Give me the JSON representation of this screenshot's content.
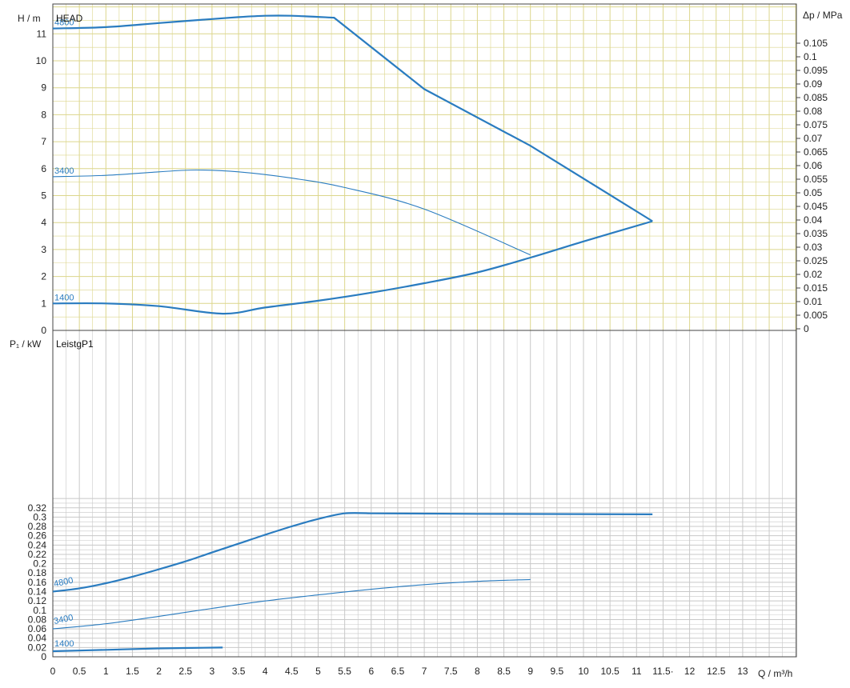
{
  "colors": {
    "curve": "#2a7cc0",
    "grid_top": "#dcd68c",
    "grid_bottom": "#c8c8c8",
    "axis": "#444444",
    "text": "#222222"
  },
  "chart_data": [
    {
      "type": "line",
      "title": "HEAD",
      "ylabel": "H / m",
      "ylabel_right": "Δp / MPa",
      "xlabel": "Q / m³/h",
      "xlim": [
        0,
        14
      ],
      "ylim": [
        0,
        11.8
      ],
      "yticks": [
        "0",
        "1",
        "2",
        "3",
        "4",
        "5",
        "6",
        "7",
        "8",
        "9",
        "10",
        "11"
      ],
      "yticks_right": [
        "0",
        "0.005",
        "0.01",
        "0.015",
        "0.02",
        "0.025",
        "0.03",
        "0.035",
        "0.04",
        "0.045",
        "0.05",
        "0.055",
        "0.06",
        "0.065",
        "0.07",
        "0.075",
        "0.08",
        "0.085",
        "0.09",
        "0.095",
        "0.1",
        "0.105"
      ],
      "grid": true,
      "series": [
        {
          "name": "4800",
          "points": [
            [
              0,
              11.2
            ],
            [
              1,
              11.25
            ],
            [
              2,
              11.4
            ],
            [
              3,
              11.55
            ],
            [
              3.5,
              11.62
            ],
            [
              4,
              11.67
            ],
            [
              4.5,
              11.67
            ],
            [
              5.3,
              11.6
            ],
            [
              7,
              8.95
            ],
            [
              9,
              6.85
            ],
            [
              11.3,
              4.05
            ]
          ]
        },
        {
          "name": "3400",
          "points": [
            [
              0,
              5.7
            ],
            [
              1,
              5.75
            ],
            [
              2,
              5.88
            ],
            [
              2.7,
              5.95
            ],
            [
              3.5,
              5.88
            ],
            [
              4.5,
              5.65
            ],
            [
              5.5,
              5.3
            ],
            [
              7,
              4.5
            ],
            [
              9,
              2.8
            ]
          ]
        },
        {
          "name": "1400",
          "points": [
            [
              0,
              1.0
            ],
            [
              1,
              1.0
            ],
            [
              2,
              0.9
            ],
            [
              3.2,
              0.62
            ],
            [
              4,
              0.85
            ],
            [
              5,
              1.1
            ],
            [
              6,
              1.4
            ],
            [
              7,
              1.75
            ],
            [
              8,
              2.15
            ],
            [
              9,
              2.7
            ],
            [
              10,
              3.3
            ],
            [
              11.3,
              4.05
            ]
          ]
        }
      ]
    },
    {
      "type": "line",
      "title": "LeistgP1",
      "ylabel": "P₁ / kW",
      "xlabel": "Q / m³/h",
      "xlim": [
        0,
        14
      ],
      "ylim": [
        0,
        0.34
      ],
      "yticks": [
        "0",
        "0.02",
        "0.04",
        "0.06",
        "0.08",
        "0.1",
        "0.12",
        "0.14",
        "0.16",
        "0.18",
        "0.2",
        "0.22",
        "0.24",
        "0.26",
        "0.28",
        "0.3",
        "0.32"
      ],
      "xticks": [
        "0",
        "0.5",
        "1",
        "1.5",
        "2",
        "2.5",
        "3",
        "3.5",
        "4",
        "4.5",
        "5",
        "5.5",
        "6",
        "6.5",
        "7",
        "7.5",
        "8",
        "8.5",
        "9",
        "9.5",
        "10",
        "10.5",
        "11",
        "11.5·",
        "12",
        "12.5",
        "13"
      ],
      "grid": true,
      "series": [
        {
          "name": "4800",
          "points": [
            [
              0,
              0.14
            ],
            [
              0.5,
              0.147
            ],
            [
              1,
              0.158
            ],
            [
              1.5,
              0.172
            ],
            [
              2,
              0.188
            ],
            [
              2.5,
              0.205
            ],
            [
              3,
              0.224
            ],
            [
              3.5,
              0.243
            ],
            [
              4,
              0.262
            ],
            [
              4.5,
              0.28
            ],
            [
              5,
              0.296
            ],
            [
              5.5,
              0.308
            ],
            [
              6,
              0.308
            ],
            [
              8,
              0.307
            ],
            [
              11.3,
              0.306
            ]
          ]
        },
        {
          "name": "3400",
          "points": [
            [
              0,
              0.06
            ],
            [
              1,
              0.071
            ],
            [
              2,
              0.087
            ],
            [
              3,
              0.104
            ],
            [
              4,
              0.12
            ],
            [
              5,
              0.133
            ],
            [
              6,
              0.145
            ],
            [
              7,
              0.155
            ],
            [
              8,
              0.162
            ],
            [
              9,
              0.166
            ]
          ]
        },
        {
          "name": "1400",
          "points": [
            [
              0,
              0.012
            ],
            [
              1,
              0.015
            ],
            [
              2,
              0.018
            ],
            [
              3.2,
              0.02
            ]
          ]
        }
      ]
    }
  ]
}
